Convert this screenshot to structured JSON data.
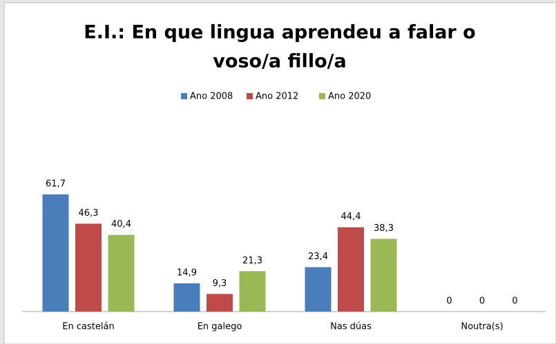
{
  "chart_data": {
    "type": "bar",
    "title": [
      "E.I.: En que lingua aprendeu a falar o",
      "voso/a fillo/a"
    ],
    "categories": [
      "En castelán",
      "En galego",
      "Nas dúas",
      "Noutra(s)"
    ],
    "series": [
      {
        "name": "Ano 2008",
        "color": "#4a7ebb",
        "values": [
          61.7,
          14.9,
          23.4,
          0
        ],
        "value_labels": [
          "61,7",
          "14,9",
          "23,4",
          "0"
        ]
      },
      {
        "name": "Ano 2012",
        "color": "#be4b48",
        "values": [
          46.3,
          9.3,
          44.4,
          0
        ],
        "value_labels": [
          "46,3",
          "9,3",
          "44,4",
          "0"
        ]
      },
      {
        "name": "Ano 2020",
        "color": "#98b954",
        "values": [
          40.4,
          21.3,
          38.3,
          0
        ],
        "value_labels": [
          "40,4",
          "21,3",
          "38,3",
          "0"
        ]
      }
    ],
    "legend": "top"
  }
}
